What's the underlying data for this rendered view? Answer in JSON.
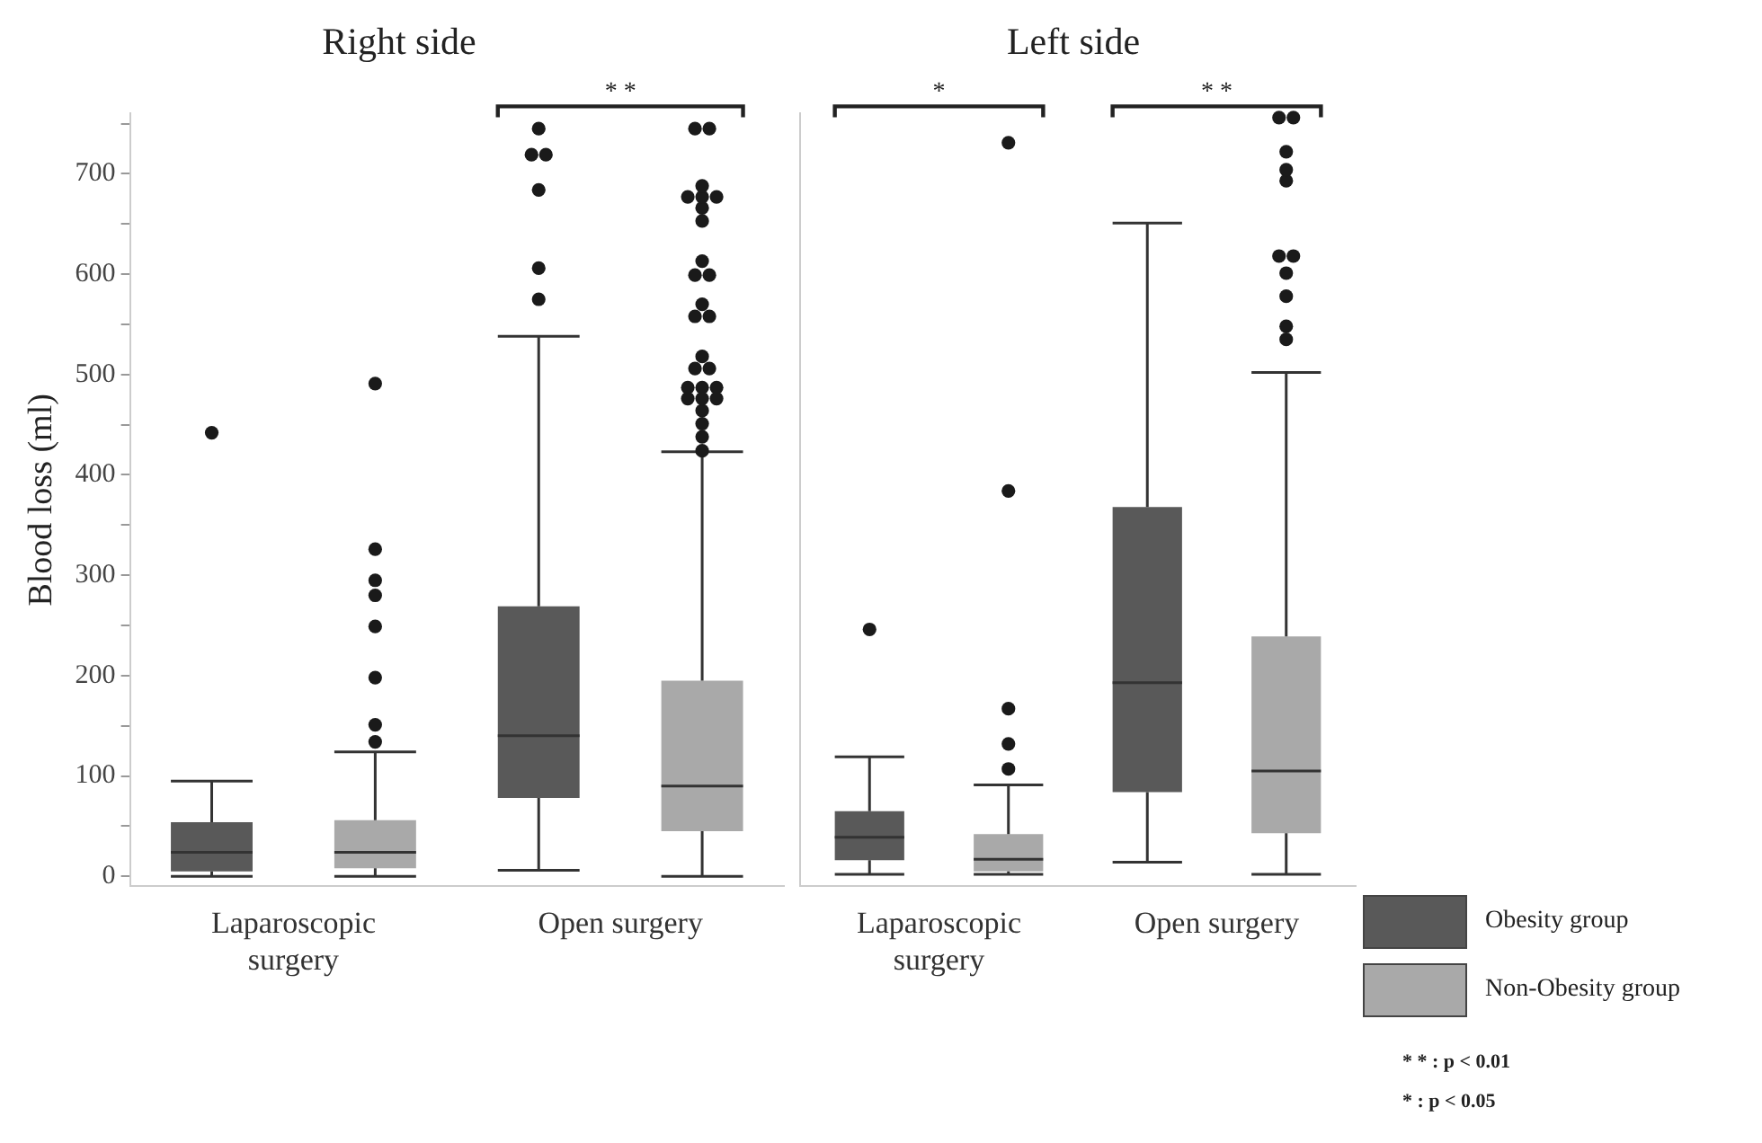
{
  "chart_data": [
    {
      "type": "box",
      "title": "Right side",
      "ylabel": "Blood loss (ml)",
      "categories": [
        "Laparoscopic surgery",
        "Open surgery"
      ],
      "series": [
        {
          "color": "#595959",
          "boxes": [
            {
              "low": 0,
              "q1": 5,
              "median": 24,
              "q3": 54,
              "high": 95,
              "outliers": [
                442
              ]
            },
            {
              "low": 6,
              "q1": 78,
              "median": 140,
              "q3": 269,
              "high": 538,
              "outliers": [
                575,
                606,
                684,
                719,
                719,
                745
              ]
            }
          ]
        },
        {
          "color": "#a9a9a9",
          "boxes": [
            {
              "low": 0,
              "q1": 8,
              "median": 24,
              "q3": 56,
              "high": 124,
              "outliers": [
                134,
                151,
                198,
                249,
                280,
                295,
                326,
                491
              ]
            },
            {
              "low": 0,
              "q1": 45,
              "median": 90,
              "q3": 195,
              "high": 423,
              "outliers": [
                424,
                438,
                451,
                464,
                476,
                476,
                476,
                487,
                487,
                487,
                506,
                506,
                518,
                558,
                558,
                570,
                599,
                599,
                613,
                653,
                666,
                677,
                677,
                677,
                688,
                745,
                745
              ]
            }
          ]
        }
      ],
      "ylim": [
        -10,
        760
      ],
      "yticks": [
        0,
        {
          "value": 50,
          "label": null
        },
        100,
        {
          "value": 150,
          "label": null
        },
        200,
        {
          "value": 250,
          "label": null
        },
        300,
        {
          "value": 350,
          "label": null
        },
        400,
        {
          "value": 450,
          "label": null
        },
        500,
        {
          "value": 550,
          "label": null
        },
        600,
        {
          "value": 650,
          "label": null
        },
        700,
        {
          "value": 750,
          "label": null
        }
      ],
      "annotations": [
        "* *"
      ]
    },
    {
      "type": "box",
      "title": "Left side",
      "categories": [
        "Laparoscopic surgery",
        "Open surgery"
      ],
      "series": [
        {
          "name": "Obesity group",
          "color": "#595959",
          "boxes": [
            {
              "low": 2,
              "q1": 16,
              "median": 39,
              "q3": 65,
              "high": 119,
              "outliers": [
                246
              ]
            },
            {
              "low": 14,
              "q1": 84,
              "median": 193,
              "q3": 368,
              "high": 651
            }
          ]
        },
        {
          "name": "Non-Obesity group",
          "color": "#a9a9a9",
          "boxes": [
            {
              "low": 2,
              "q1": 5,
              "median": 17,
              "q3": 42,
              "high": 91,
              "outliers": [
                107,
                132,
                167,
                384,
                731
              ]
            },
            {
              "low": 2,
              "q1": 43,
              "median": 105,
              "q3": 239,
              "high": 502,
              "outliers": [
                535,
                548,
                578,
                601,
                618,
                618,
                693,
                704,
                722,
                756,
                756
              ]
            }
          ]
        }
      ],
      "ylim": [
        -10,
        760
      ],
      "tick_labels": "x",
      "legend": "bottom right",
      "annotations": [
        "*",
        "* *",
        "* * : p < 0.01",
        "* : p < 0.05"
      ]
    }
  ]
}
